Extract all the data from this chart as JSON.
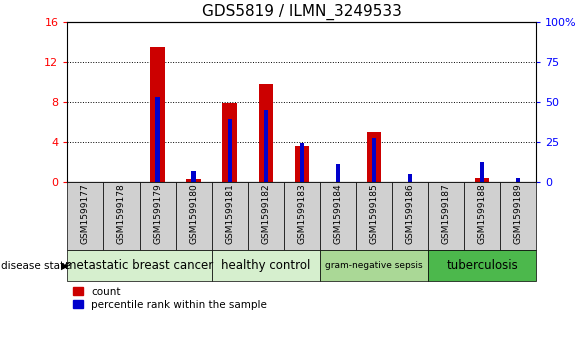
{
  "title": "GDS5819 / ILMN_3249533",
  "samples": [
    "GSM1599177",
    "GSM1599178",
    "GSM1599179",
    "GSM1599180",
    "GSM1599181",
    "GSM1599182",
    "GSM1599183",
    "GSM1599184",
    "GSM1599185",
    "GSM1599186",
    "GSM1599187",
    "GSM1599188",
    "GSM1599189"
  ],
  "count_values": [
    0,
    0,
    13.5,
    0.3,
    7.9,
    9.8,
    3.6,
    0,
    5.0,
    0,
    0,
    0.4,
    0
  ],
  "percentile_values": [
    0,
    0,
    53,
    6.3,
    39,
    45,
    24,
    11,
    27,
    4.4,
    0,
    12.5,
    2.5
  ],
  "ylim_left": [
    0,
    16
  ],
  "ylim_right": [
    0,
    100
  ],
  "yticks_left": [
    0,
    4,
    8,
    12,
    16
  ],
  "yticks_right": [
    0,
    25,
    50,
    75,
    100
  ],
  "ytick_labels_right": [
    "0",
    "25",
    "50",
    "75",
    "100%"
  ],
  "groups": [
    {
      "label": "metastatic breast cancer",
      "start": 0,
      "end": 3,
      "color": "#d6efce"
    },
    {
      "label": "healthy control",
      "start": 4,
      "end": 6,
      "color": "#d6efce"
    },
    {
      "label": "gram-negative sepsis",
      "start": 7,
      "end": 9,
      "color": "#aad896"
    },
    {
      "label": "tuberculosis",
      "start": 10,
      "end": 12,
      "color": "#4cb84c"
    }
  ],
  "bar_color_red": "#cc0000",
  "bar_color_blue": "#0000cc",
  "bar_width": 0.4,
  "blue_bar_width": 0.12,
  "background_color": "#ffffff",
  "tick_label_fontsize": 6.5,
  "title_fontsize": 11,
  "group_label_fontsizes": [
    8.5,
    8.5,
    6.5,
    8.5
  ],
  "disease_state_label": "disease state",
  "legend_count": "count",
  "legend_percentile": "percentile rank within the sample",
  "sample_box_color": "#d0d0d0"
}
